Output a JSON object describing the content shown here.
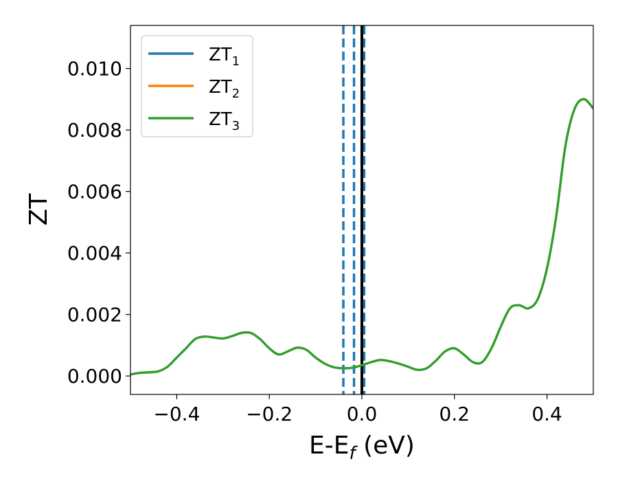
{
  "chart_data": {
    "type": "line",
    "title": "",
    "xlabel": {
      "main": "E-E",
      "sub": "f",
      "suffix": " (eV)"
    },
    "ylabel": "ZT",
    "xlim": [
      -0.5,
      0.5
    ],
    "ylim": [
      -0.0006,
      0.0114
    ],
    "xticks": [
      -0.4,
      -0.2,
      0.0,
      0.2,
      0.4
    ],
    "xtick_labels": [
      "−0.4",
      "−0.2",
      "0.0",
      "0.2",
      "0.4"
    ],
    "yticks": [
      0.0,
      0.002,
      0.004,
      0.006,
      0.008,
      0.01
    ],
    "ytick_labels": [
      "0.000",
      "0.002",
      "0.004",
      "0.006",
      "0.008",
      "0.010"
    ],
    "grid": false,
    "legend_position": "top-left",
    "vertical_lines": [
      {
        "x": -0.04,
        "style": "dashed",
        "color": "#1f77b4"
      },
      {
        "x": -0.017,
        "style": "dashed",
        "color": "#1f77b4"
      },
      {
        "x": 0.005,
        "style": "dashed",
        "color": "#1f77b4"
      },
      {
        "x": 0.0,
        "style": "solid",
        "color": "#000000"
      }
    ],
    "x": [
      -0.5,
      -0.48,
      -0.46,
      -0.44,
      -0.42,
      -0.4,
      -0.38,
      -0.36,
      -0.34,
      -0.32,
      -0.3,
      -0.28,
      -0.26,
      -0.24,
      -0.22,
      -0.2,
      -0.18,
      -0.16,
      -0.14,
      -0.12,
      -0.1,
      -0.08,
      -0.06,
      -0.04,
      -0.02,
      0.0,
      0.02,
      0.04,
      0.06,
      0.08,
      0.1,
      0.12,
      0.14,
      0.16,
      0.18,
      0.2,
      0.22,
      0.24,
      0.26,
      0.28,
      0.3,
      0.32,
      0.34,
      0.36,
      0.38,
      0.4,
      0.42,
      0.44,
      0.46,
      0.48,
      0.5
    ],
    "series": [
      {
        "name": "ZT",
        "sub": "1",
        "color": "#1f77b4",
        "values": [
          5e-05,
          0.0001,
          0.00012,
          0.00015,
          0.0003,
          0.0006,
          0.0009,
          0.0012,
          0.00128,
          0.00125,
          0.00122,
          0.0013,
          0.0014,
          0.0014,
          0.0012,
          0.0009,
          0.0007,
          0.0008,
          0.00092,
          0.00085,
          0.0006,
          0.0004,
          0.00028,
          0.00025,
          0.00027,
          0.00035,
          0.00045,
          0.00052,
          0.00048,
          0.0004,
          0.0003,
          0.0002,
          0.00025,
          0.0005,
          0.0008,
          0.0009,
          0.0007,
          0.00045,
          0.00045,
          0.0009,
          0.0016,
          0.0022,
          0.0023,
          0.0022,
          0.0025,
          0.0035,
          0.0052,
          0.0075,
          0.0087,
          0.009,
          0.0087
        ]
      },
      {
        "name": "ZT",
        "sub": "2",
        "color": "#ff7f0e",
        "values": [
          5e-05,
          0.0001,
          0.00012,
          0.00015,
          0.0003,
          0.0006,
          0.0009,
          0.0012,
          0.00128,
          0.00125,
          0.00122,
          0.0013,
          0.0014,
          0.0014,
          0.0012,
          0.0009,
          0.0007,
          0.0008,
          0.00092,
          0.00085,
          0.0006,
          0.0004,
          0.00028,
          0.00025,
          0.00027,
          0.00035,
          0.00045,
          0.00052,
          0.00048,
          0.0004,
          0.0003,
          0.0002,
          0.00025,
          0.0005,
          0.0008,
          0.0009,
          0.0007,
          0.00045,
          0.00045,
          0.0009,
          0.0016,
          0.0022,
          0.0023,
          0.0022,
          0.0025,
          0.0035,
          0.0052,
          0.0075,
          0.0087,
          0.009,
          0.0087
        ]
      },
      {
        "name": "ZT",
        "sub": "3",
        "color": "#2ca02c",
        "values": [
          5e-05,
          0.0001,
          0.00012,
          0.00015,
          0.0003,
          0.0006,
          0.0009,
          0.0012,
          0.00128,
          0.00125,
          0.00122,
          0.0013,
          0.0014,
          0.0014,
          0.0012,
          0.0009,
          0.0007,
          0.0008,
          0.00092,
          0.00085,
          0.0006,
          0.0004,
          0.00028,
          0.00025,
          0.00027,
          0.00035,
          0.00045,
          0.00052,
          0.00048,
          0.0004,
          0.0003,
          0.0002,
          0.00025,
          0.0005,
          0.0008,
          0.0009,
          0.0007,
          0.00045,
          0.00045,
          0.0009,
          0.0016,
          0.0022,
          0.0023,
          0.0022,
          0.0025,
          0.0035,
          0.0052,
          0.0075,
          0.0087,
          0.009,
          0.0087
        ]
      }
    ]
  }
}
